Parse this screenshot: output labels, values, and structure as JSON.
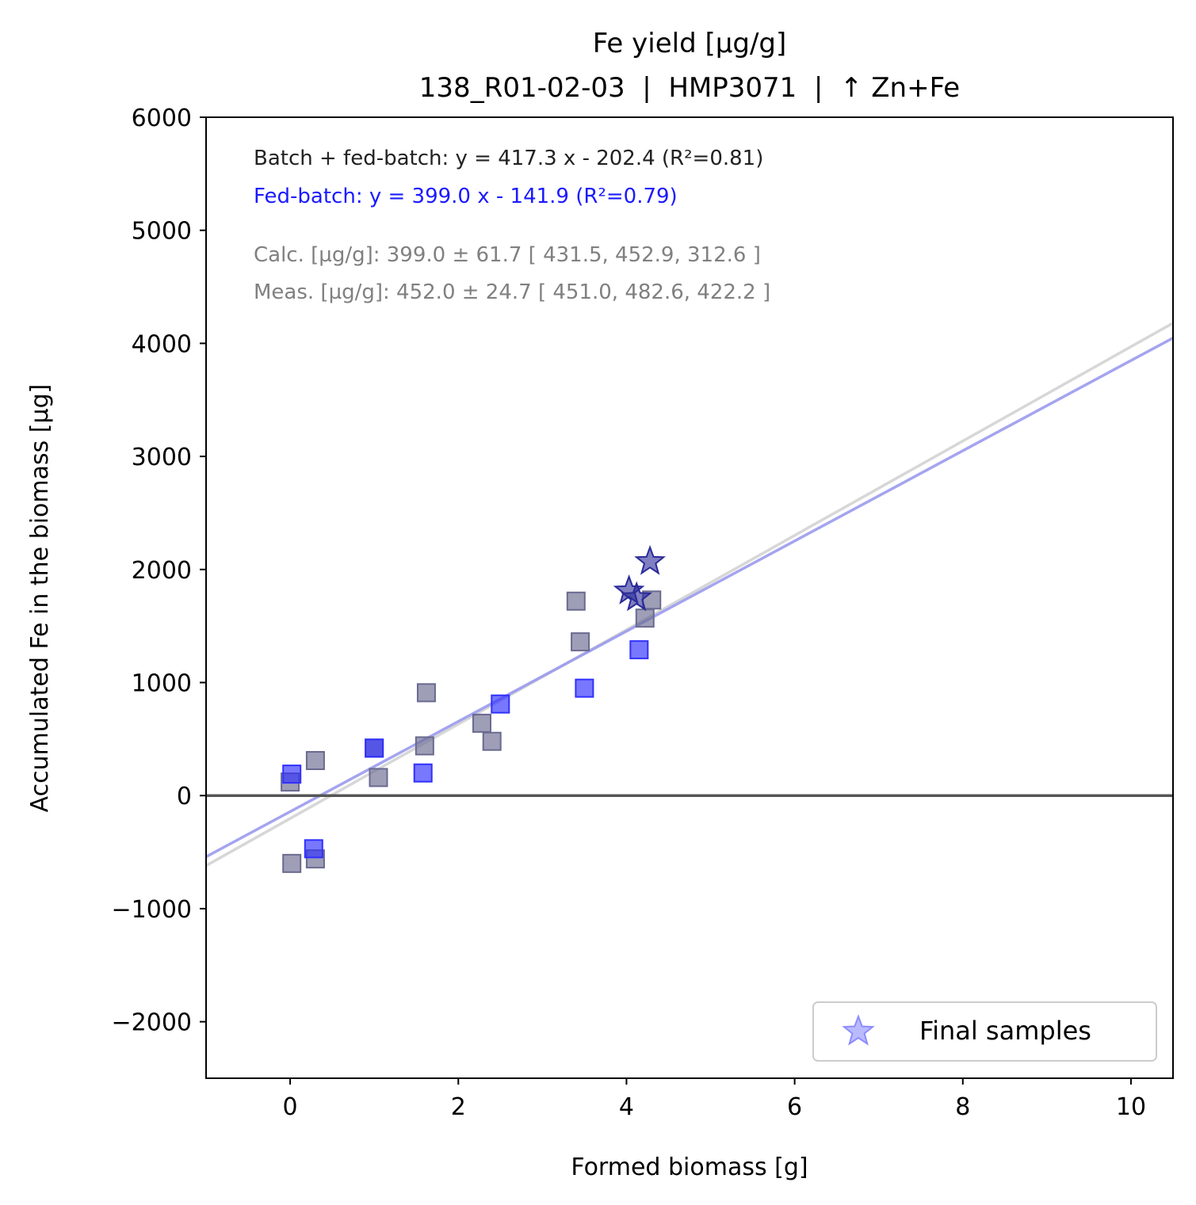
{
  "chart_data": {
    "type": "scatter",
    "title": "Fe yield [µg/g]",
    "subtitle": "138_R01-02-03  |  HMP3071  |  ↑ Zn+Fe",
    "xlabel": "Formed biomass [g]",
    "ylabel": "Accumulated Fe in the biomass [µg]",
    "xlim": [
      -1,
      10.5
    ],
    "ylim": [
      -2500,
      6000
    ],
    "xticks": [
      0,
      2,
      4,
      6,
      8,
      10
    ],
    "yticks": [
      -2000,
      -1000,
      0,
      1000,
      2000,
      3000,
      4000,
      5000,
      6000
    ],
    "grid": false,
    "legend": {
      "position": "lower right",
      "entries": [
        {
          "label": "Final samples",
          "marker": "star",
          "color": "#8c8cff"
        }
      ]
    },
    "annotations": [
      {
        "text": "Batch + fed-batch: y = 417.3 x - 202.4 (R²=0.81)",
        "color": "#222222"
      },
      {
        "text": "Fed-batch: y = 399.0 x - 141.9 (R²=0.79)",
        "color": "#1a1aff"
      },
      {
        "text": "Calc. [µg/g]: 399.0 ± 61.7 [ 431.5, 452.9, 312.6 ]",
        "color": "#808080"
      },
      {
        "text": "Meas. [µg/g]: 452.0 ± 24.7 [ 451.0, 482.6, 422.2 ]",
        "color": "#808080"
      }
    ],
    "reference_line": {
      "y": 0,
      "color": "#555555"
    },
    "fit_lines": [
      {
        "slope": 417.3,
        "intercept": -202.4,
        "color": "#d3d3d3"
      },
      {
        "slope": 399.0,
        "intercept": -141.9,
        "color": "#9a9aee"
      }
    ],
    "series": [
      {
        "marker": "square",
        "color": "#6a6a90",
        "points": [
          [
            0.0,
            120
          ],
          [
            0.02,
            -600
          ],
          [
            0.3,
            310
          ],
          [
            0.3,
            -560
          ],
          [
            1.0,
            420
          ],
          [
            1.05,
            160
          ],
          [
            1.6,
            440
          ],
          [
            1.62,
            910
          ],
          [
            2.28,
            640
          ],
          [
            2.4,
            480
          ],
          [
            3.4,
            1720
          ],
          [
            3.45,
            1360
          ],
          [
            4.22,
            1570
          ],
          [
            4.3,
            1730
          ]
        ]
      },
      {
        "marker": "square",
        "color": "#3030ff",
        "points": [
          [
            0.02,
            190
          ],
          [
            0.28,
            -470
          ],
          [
            1.0,
            420
          ],
          [
            1.58,
            200
          ],
          [
            2.5,
            810
          ],
          [
            3.5,
            950
          ],
          [
            4.15,
            1290
          ]
        ]
      },
      {
        "name": "Final samples",
        "marker": "star",
        "color": "#2a2a9a",
        "points": [
          [
            4.03,
            1810
          ],
          [
            4.12,
            1750
          ],
          [
            4.28,
            2070
          ]
        ]
      }
    ]
  }
}
